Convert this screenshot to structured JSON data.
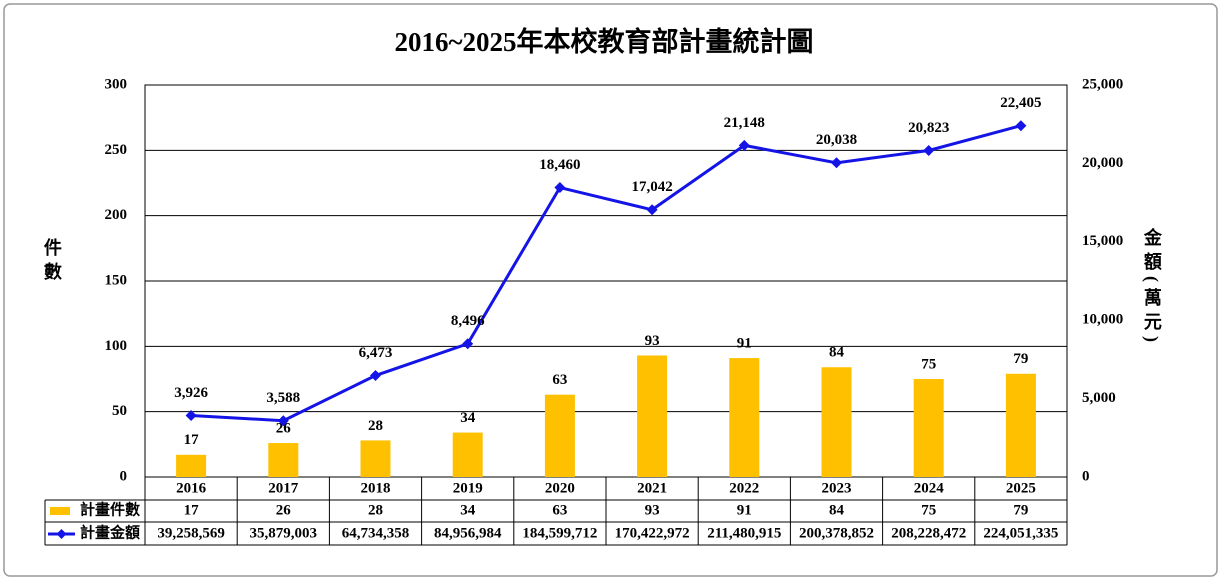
{
  "chart_data": {
    "type": "bar-line",
    "title": "2016~2025年本校教育部計畫統計圖",
    "y_label": "件數",
    "y2_label": "金額(萬元)",
    "categories": [
      "2016",
      "2017",
      "2018",
      "2019",
      "2020",
      "2021",
      "2022",
      "2023",
      "2024",
      "2025"
    ],
    "series": [
      {
        "name": "計畫件數",
        "type": "bar",
        "color": "#FFC000",
        "values": [
          17,
          26,
          28,
          34,
          63,
          93,
          91,
          84,
          75,
          79
        ]
      },
      {
        "name": "計畫金額",
        "type": "line",
        "axis": "y2",
        "color": "#1414E6",
        "values": [
          3926,
          3588,
          6473,
          8496,
          18460,
          17042,
          21148,
          20038,
          20823,
          22405
        ],
        "value_labels": [
          "3,926",
          "3,588",
          "6,473",
          "8,496",
          "18,460",
          "17,042",
          "21,148",
          "20,038",
          "20,823",
          "22,405"
        ],
        "table_labels": [
          "39,258,569",
          "35,879,003",
          "64,734,358",
          "84,956,984",
          "184,599,712",
          "170,422,972",
          "211,480,915",
          "200,378,852",
          "208,228,472",
          "224,051,335"
        ]
      }
    ],
    "ylim": [
      0,
      300
    ],
    "yticks": [
      0,
      50,
      100,
      150,
      200,
      250,
      300
    ],
    "y2lim": [
      0,
      25000
    ],
    "y2ticks": [
      0,
      {
        "value": 5000,
        "label": "5,000"
      },
      {
        "value": 10000,
        "label": "10,000"
      },
      {
        "value": 15000,
        "label": "15,000"
      },
      {
        "value": 20000,
        "label": "20,000"
      },
      {
        "value": 25000,
        "label": "25,000"
      }
    ],
    "grid": true
  }
}
